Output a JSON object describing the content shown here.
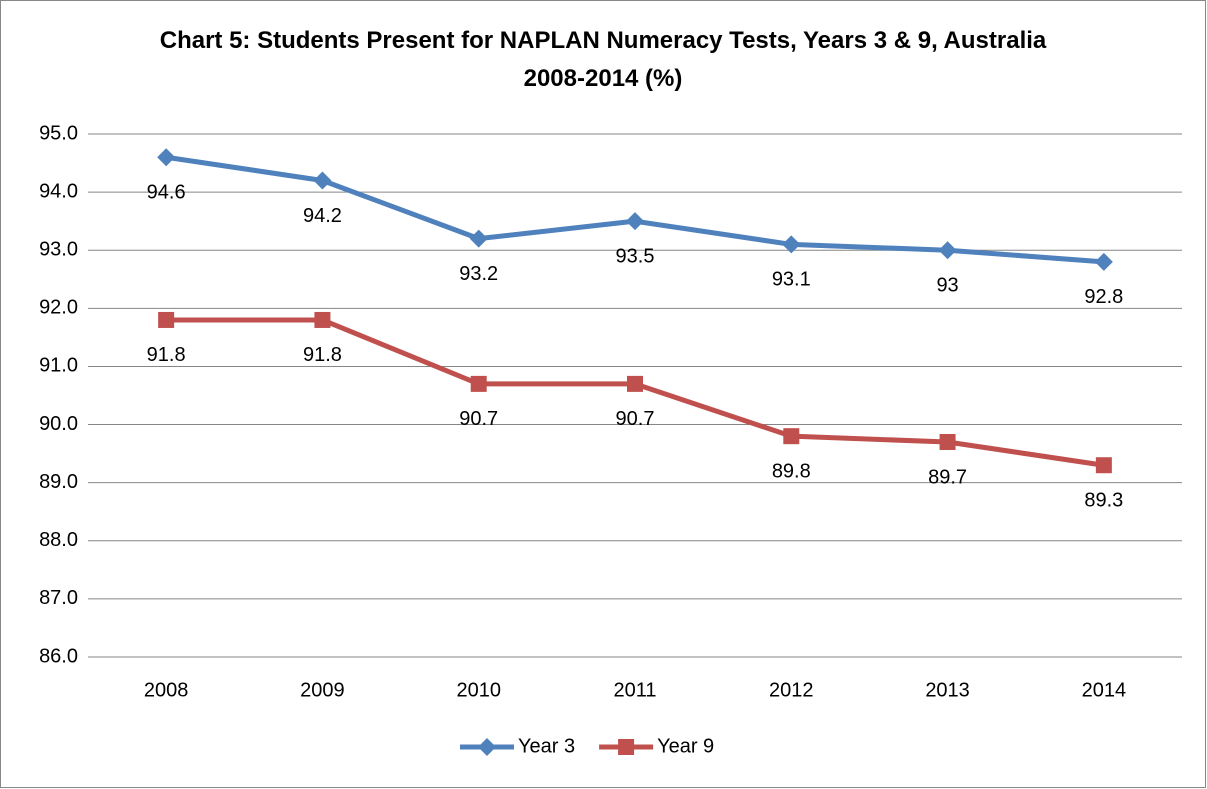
{
  "chart_data": {
    "type": "line",
    "title": "Chart 5: Students Present for NAPLAN Numeracy Tests, Years 3 & 9, Australia 2008-2014 (%)",
    "categories": [
      "2008",
      "2009",
      "2010",
      "2011",
      "2012",
      "2013",
      "2014"
    ],
    "series": [
      {
        "name": "Year 3",
        "color": "#4f81bd",
        "marker": "diamond",
        "values": [
          94.6,
          94.2,
          93.2,
          93.5,
          93.1,
          93,
          92.8
        ]
      },
      {
        "name": "Year 9",
        "color": "#c0504d",
        "marker": "square",
        "values": [
          91.8,
          91.8,
          90.7,
          90.7,
          89.8,
          89.7,
          89.3
        ]
      }
    ],
    "ylim": [
      86,
      95
    ],
    "yticks": [
      {
        "value": 86,
        "label": "86.0"
      },
      {
        "value": 87,
        "label": "87.0"
      },
      {
        "value": 88,
        "label": "88.0"
      },
      {
        "value": 89,
        "label": "89.0"
      },
      {
        "value": 90,
        "label": "90.0"
      },
      {
        "value": 91,
        "label": "91.0"
      },
      {
        "value": 92,
        "label": "92.0"
      },
      {
        "value": 93,
        "label": "93.0"
      },
      {
        "value": 94,
        "label": "94.0"
      },
      {
        "value": 95,
        "label": "95.0"
      }
    ],
    "grid": true,
    "legend": "bottom"
  }
}
